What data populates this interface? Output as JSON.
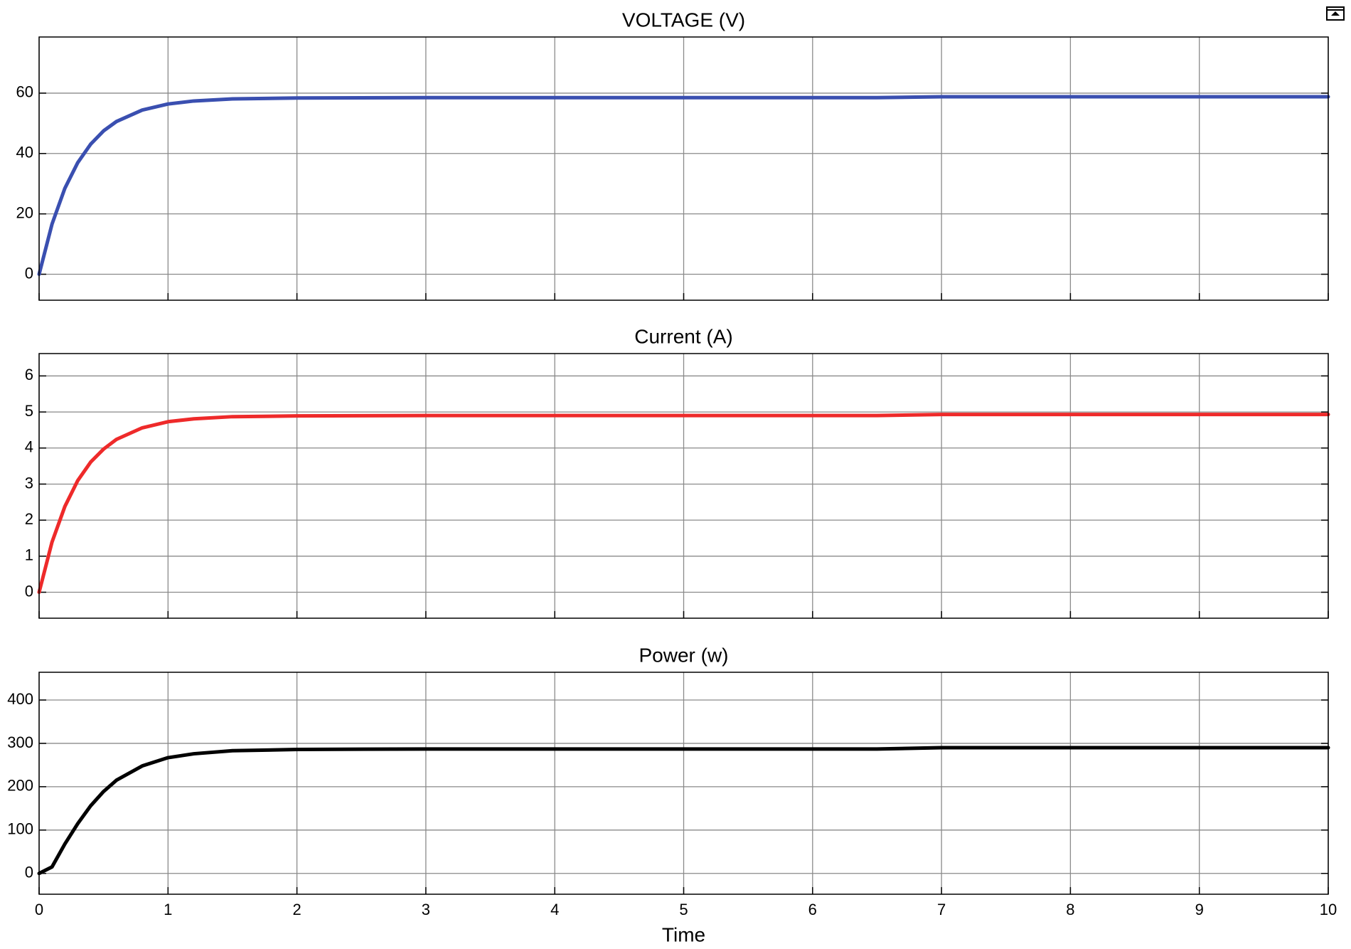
{
  "chart_data": [
    {
      "type": "line",
      "title": "VOLTAGE (V)",
      "color": "#3a4fb0",
      "x": [
        0,
        0.1,
        0.2,
        0.3,
        0.4,
        0.5,
        0.6,
        0.8,
        1,
        1.2,
        1.5,
        2,
        3,
        4,
        5,
        6,
        6.5,
        7,
        8,
        9,
        10
      ],
      "values": [
        0,
        16.6,
        28.5,
        37.0,
        43.1,
        47.5,
        50.6,
        54.4,
        56.4,
        57.4,
        58.1,
        58.4,
        58.5,
        58.5,
        58.5,
        58.5,
        58.5,
        58.8,
        58.8,
        58.8,
        58.8
      ],
      "xlim": [
        0,
        10
      ],
      "xticks": [
        0,
        1,
        2,
        3,
        4,
        5,
        6,
        7,
        8,
        9,
        10
      ],
      "show_xtick_labels": false,
      "ylim": [
        -8.6,
        78.6
      ],
      "yticks": [
        0,
        20,
        40,
        60
      ],
      "grid": true
    },
    {
      "type": "line",
      "title": "Current (A)",
      "color": "#ee2a2a",
      "x": [
        0,
        0.1,
        0.2,
        0.3,
        0.4,
        0.5,
        0.6,
        0.8,
        1,
        1.2,
        1.5,
        2,
        3,
        4,
        5,
        6,
        6.5,
        7,
        8,
        9,
        10
      ],
      "values": [
        0,
        1.39,
        2.38,
        3.1,
        3.61,
        3.97,
        4.24,
        4.56,
        4.73,
        4.81,
        4.87,
        4.89,
        4.9,
        4.9,
        4.9,
        4.9,
        4.9,
        4.93,
        4.93,
        4.93,
        4.93
      ],
      "xlim": [
        0,
        10
      ],
      "xticks": [
        0,
        1,
        2,
        3,
        4,
        5,
        6,
        7,
        8,
        9,
        10
      ],
      "show_xtick_labels": false,
      "ylim": [
        -0.72,
        6.62
      ],
      "yticks": [
        0,
        1,
        2,
        3,
        4,
        5,
        6
      ],
      "grid": true
    },
    {
      "type": "line",
      "title": "Power (w)",
      "color": "#000000",
      "xlabel": "Time",
      "x": [
        0,
        0.1,
        0.2,
        0.3,
        0.4,
        0.5,
        0.6,
        0.8,
        1,
        1.2,
        1.5,
        2,
        3,
        4,
        5,
        6,
        6.5,
        7,
        8,
        9,
        10
      ],
      "values": [
        0,
        15,
        68,
        115,
        156,
        189,
        215,
        248,
        267,
        276,
        283,
        286,
        287,
        287,
        287,
        287,
        287,
        290,
        290,
        290,
        290
      ],
      "xlim": [
        0,
        10
      ],
      "xticks": [
        0,
        1,
        2,
        3,
        4,
        5,
        6,
        7,
        8,
        9,
        10
      ],
      "show_xtick_labels": true,
      "ylim": [
        -48,
        464
      ],
      "yticks": [
        0,
        100,
        200,
        300,
        400
      ],
      "grid": true
    }
  ]
}
